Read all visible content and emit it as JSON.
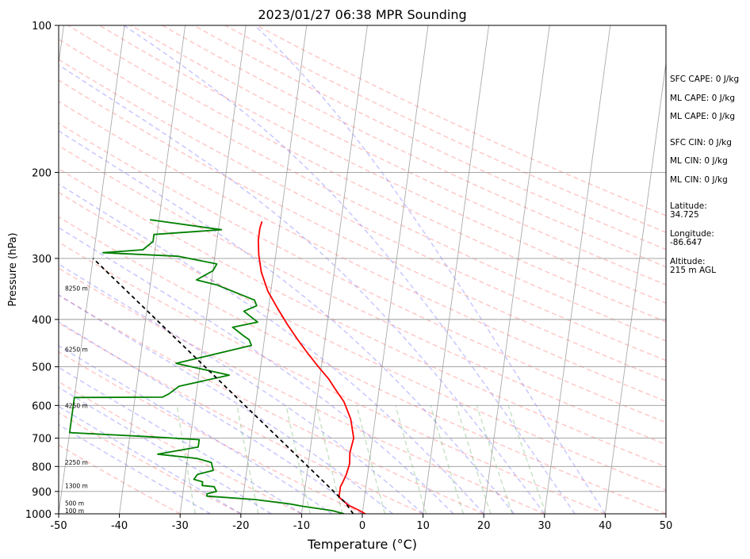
{
  "chart_data": {
    "type": "line",
    "title": "2023/01/27 06:38 MPR Sounding",
    "xlabel": "Temperature (°C)",
    "ylabel": "Pressure (hPa)",
    "xlim": [
      -50,
      50
    ],
    "ylim": [
      1000,
      100
    ],
    "y_scale": "log",
    "x_ticks": [
      -50,
      -40,
      -30,
      -20,
      -10,
      0,
      10,
      20,
      30,
      40,
      50
    ],
    "y_ticks": [
      1000,
      900,
      800,
      700,
      600,
      500,
      400,
      300,
      200,
      100
    ],
    "grid": true,
    "series": [
      {
        "color": "#ff0000",
        "points": [
          [
            0.5,
            1000
          ],
          [
            -0.5,
            985
          ],
          [
            -2.5,
            960
          ],
          [
            -4.2,
            925
          ],
          [
            -4.2,
            880
          ],
          [
            -3.9,
            860
          ],
          [
            -3.5,
            830
          ],
          [
            -3.2,
            790
          ],
          [
            -3.4,
            750
          ],
          [
            -3.1,
            700
          ],
          [
            -4.0,
            640
          ],
          [
            -5.5,
            590
          ],
          [
            -7.0,
            560
          ],
          [
            -8.5,
            530
          ],
          [
            -10.5,
            500
          ],
          [
            -12.5,
            470
          ],
          [
            -14.5,
            440
          ],
          [
            -16.5,
            410
          ],
          [
            -18.5,
            380
          ],
          [
            -20.5,
            350
          ],
          [
            -22.0,
            320
          ],
          [
            -22.8,
            295
          ],
          [
            -23.2,
            275
          ],
          [
            -23.2,
            260
          ],
          [
            -23.0,
            252
          ]
        ]
      },
      {
        "color": "#008000",
        "points": [
          [
            -3.0,
            1000
          ],
          [
            -5.0,
            985
          ],
          [
            -10.0,
            965
          ],
          [
            -12.0,
            955
          ],
          [
            -18.0,
            935
          ],
          [
            -26.0,
            920
          ],
          [
            -26.0,
            910
          ],
          [
            -24.5,
            900
          ],
          [
            -25.0,
            880
          ],
          [
            -27.0,
            875
          ],
          [
            -27.0,
            860
          ],
          [
            -28.5,
            850
          ],
          [
            -28.0,
            830
          ],
          [
            -25.5,
            815
          ],
          [
            -26.0,
            785
          ],
          [
            -28.5,
            770
          ],
          [
            -35.0,
            755
          ],
          [
            -28.5,
            730
          ],
          [
            -28.5,
            705
          ],
          [
            -37.0,
            695
          ],
          [
            -50.0,
            682
          ],
          [
            -50.0,
            578
          ],
          [
            -35.5,
            577
          ],
          [
            -34.5,
            568
          ],
          [
            -33.0,
            548
          ],
          [
            -25.0,
            520
          ],
          [
            -34.0,
            492
          ],
          [
            -22.0,
            452
          ],
          [
            -22.5,
            440
          ],
          [
            -23.5,
            432
          ],
          [
            -25.5,
            415
          ],
          [
            -21.5,
            405
          ],
          [
            -24.0,
            385
          ],
          [
            -22.0,
            375
          ],
          [
            -22.5,
            365
          ],
          [
            -29.0,
            340
          ],
          [
            -32.5,
            332
          ],
          [
            -30.0,
            318
          ],
          [
            -29.5,
            308
          ],
          [
            -36.0,
            297
          ],
          [
            -48.5,
            292
          ],
          [
            -42.0,
            288
          ],
          [
            -40.5,
            277
          ],
          [
            -40.5,
            268
          ],
          [
            -29.5,
            262
          ],
          [
            -41.5,
            250
          ]
        ]
      },
      {
        "color": "#000000",
        "dashed": true,
        "points": [
          [
            -1.5,
            1000
          ],
          [
            -3.0,
            950
          ],
          [
            -50.0,
            300
          ]
        ]
      }
    ],
    "height_labels": [
      {
        "text": "100 m",
        "p": 985
      },
      {
        "text": "500 m",
        "p": 950
      },
      {
        "text": "1300 m",
        "p": 875
      },
      {
        "text": "2250 m",
        "p": 785
      },
      {
        "text": "4250 m",
        "p": 600
      },
      {
        "text": "6250 m",
        "p": 460
      },
      {
        "text": "8250 m",
        "p": 345
      }
    ]
  },
  "stats": {
    "sfc_cape": "SFC CAPE: 0 J/kg",
    "ml_cape": "ML CAPE: 0 J/kg",
    "mu_cape": "ML CAPE: 0 J/kg",
    "sfc_cin": "SFC CIN: 0 J/kg",
    "ml_cin": "ML CIN: 0 J/kg",
    "mu_cin": "ML CIN: 0 J/kg",
    "latitude": "Latitude:\n34.725",
    "longitude": "Longitude:\n-86.647",
    "altitude": "Altitude:\n215 m AGL"
  }
}
